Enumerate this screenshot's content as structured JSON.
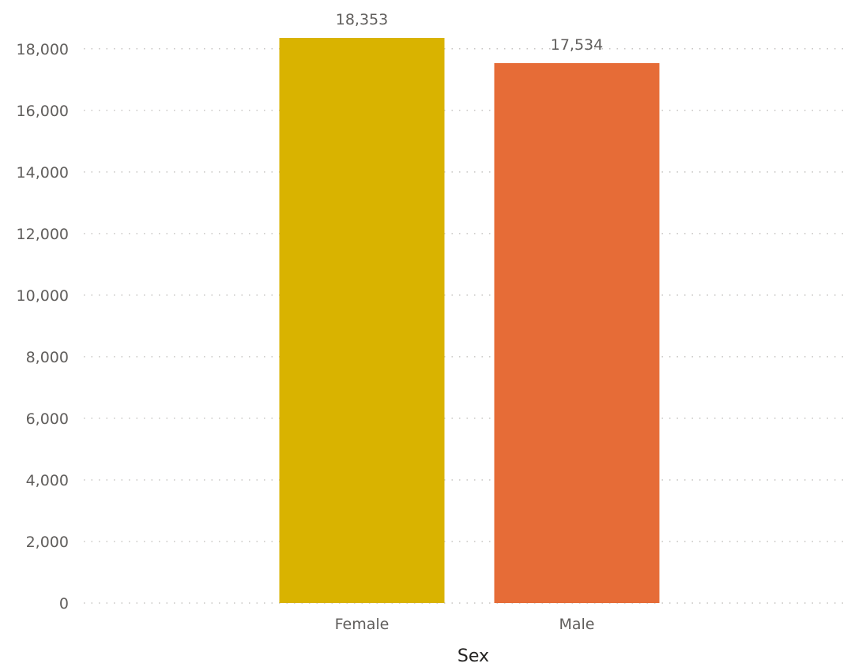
{
  "chart_data": {
    "type": "bar",
    "title": "",
    "xlabel": "Sex",
    "ylabel": "",
    "categories": [
      "Female",
      "Male"
    ],
    "values": [
      18353,
      17534
    ],
    "value_labels": [
      "18,353",
      "17,534"
    ],
    "colors": [
      "#d9b300",
      "#e66c37"
    ],
    "ylim": [
      0,
      18353
    ],
    "yticks": [
      0,
      2000,
      4000,
      6000,
      8000,
      10000,
      12000,
      14000,
      16000,
      18000
    ],
    "ytick_labels": [
      "0",
      "2,000",
      "4,000",
      "6,000",
      "8,000",
      "10,000",
      "12,000",
      "14,000",
      "16,000",
      "18,000"
    ],
    "grid": true,
    "legend": "none"
  }
}
